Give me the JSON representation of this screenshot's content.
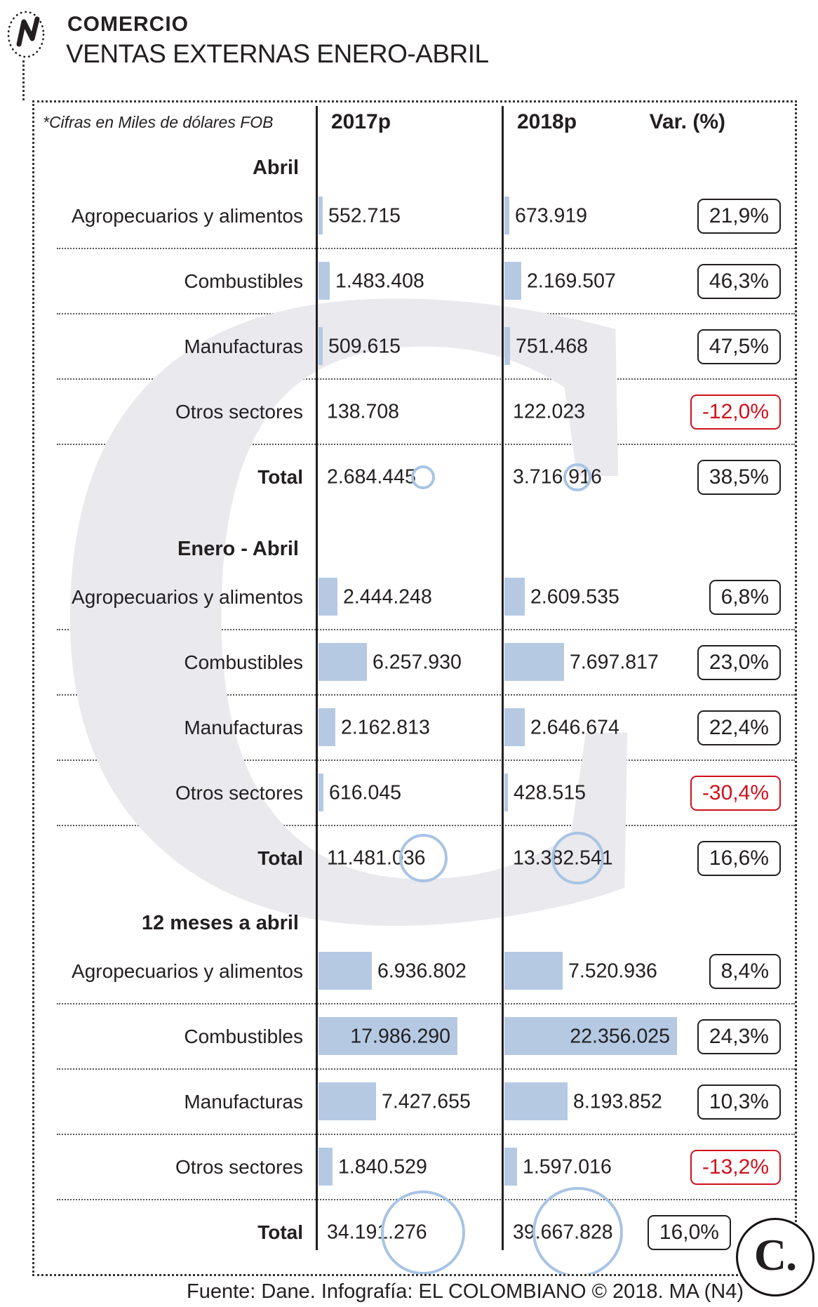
{
  "masthead": {
    "kicker": "COMERCIO",
    "logo_letter": "N"
  },
  "chart_data": {
    "type": "table",
    "title": "VENTAS EXTERNAS ENERO-ABRIL",
    "unit_note": "*Cifras en Miles de dólares FOB",
    "columns": [
      "2017p",
      "2018p",
      "Var. (%)"
    ],
    "legend_position": "none",
    "grid": "dotted-row-separators",
    "colors": {
      "bar": "#b5c9e3",
      "total_circle_stroke": "#a8c4e4",
      "negative": "#d0111b",
      "text": "#231f20",
      "watermark": "#e9e9ee"
    },
    "sections": [
      {
        "header": "Abril",
        "rows": [
          {
            "label": "Agropecuarios y alimentos",
            "y2017": 552715,
            "y2018": 673919,
            "var": "21,9%"
          },
          {
            "label": "Combustibles",
            "y2017": 1483408,
            "y2018": 2169507,
            "var": "46,3%"
          },
          {
            "label": "Manufacturas",
            "y2017": 509615,
            "y2018": 751468,
            "var": "47,5%"
          },
          {
            "label": "Otros sectores",
            "y2017": 138708,
            "y2018": 122023,
            "var": "-12,0%"
          },
          {
            "label": "Total",
            "y2017": 2684445,
            "y2018": 3716916,
            "var": "38,5%",
            "is_total": true
          }
        ]
      },
      {
        "header": "Enero - Abril",
        "rows": [
          {
            "label": "Agropecuarios y alimentos",
            "y2017": 2444248,
            "y2018": 2609535,
            "var": "6,8%"
          },
          {
            "label": "Combustibles",
            "y2017": 6257930,
            "y2018": 7697817,
            "var": "23,0%"
          },
          {
            "label": "Manufacturas",
            "y2017": 2162813,
            "y2018": 2646674,
            "var": "22,4%"
          },
          {
            "label": "Otros sectores",
            "y2017": 616045,
            "y2018": 428515,
            "var": "-30,4%"
          },
          {
            "label": "Total",
            "y2017": 11481036,
            "y2018": 13382541,
            "var": "16,6%",
            "is_total": true
          }
        ]
      },
      {
        "header": "12 meses a abril",
        "rows": [
          {
            "label": "Agropecuarios y alimentos",
            "y2017": 6936802,
            "y2018": 7520936,
            "var": "8,4%"
          },
          {
            "label": "Combustibles",
            "y2017": 17986290,
            "y2018": 22356025,
            "var": "24,3%"
          },
          {
            "label": "Manufacturas",
            "y2017": 7427655,
            "y2018": 8193852,
            "var": "10,3%"
          },
          {
            "label": "Otros sectores",
            "y2017": 1840529,
            "y2018": 1597016,
            "var": "-13,2%"
          },
          {
            "label": "Total",
            "y2017": 34191276,
            "y2018": 39667828,
            "var": "16,0%",
            "is_total": true
          }
        ]
      }
    ]
  },
  "footer": {
    "credit": "Fuente: Dane. Infografía: EL COLOMBIANO © 2018. MA (N4)"
  },
  "logos": {
    "corner_logo_text": "C."
  }
}
